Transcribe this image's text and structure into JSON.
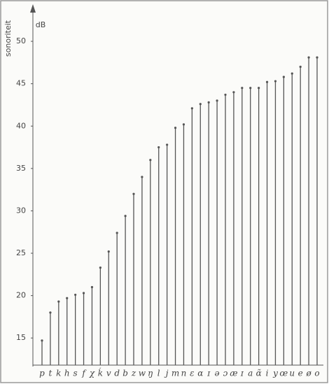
{
  "chart_data": {
    "type": "stem",
    "y_label": "sonoriteit",
    "y_unit": "dB",
    "categories": [
      "p",
      "t",
      "k",
      "h",
      "s",
      "f",
      "χ",
      "ḱ",
      "v",
      "d",
      "b",
      "z",
      "w",
      "ŋ",
      "l",
      "j",
      "m",
      "n",
      "ɛ",
      "ɑ",
      "ɪ",
      "ə",
      "ɔ",
      "æ",
      "ɪ",
      "a",
      "ɑ̃",
      "i",
      "y",
      "œ",
      "u",
      "e",
      "ø",
      "o"
    ],
    "values": [
      14.7,
      18.0,
      19.3,
      19.7,
      20.1,
      20.3,
      21.0,
      23.3,
      25.2,
      27.4,
      29.4,
      32.0,
      34.0,
      36.0,
      37.5,
      37.8,
      39.8,
      40.2,
      42.1,
      42.6,
      42.8,
      43.0,
      43.7,
      44.0,
      44.5,
      44.5,
      44.5,
      45.2,
      45.3,
      45.8,
      46.2,
      47.0,
      48.1,
      48.1
    ],
    "color": "#555555",
    "ylim": [
      11.8,
      52.4
    ],
    "yticks": [
      15,
      20,
      25,
      30,
      35,
      40,
      45,
      50
    ],
    "grid": false
  }
}
